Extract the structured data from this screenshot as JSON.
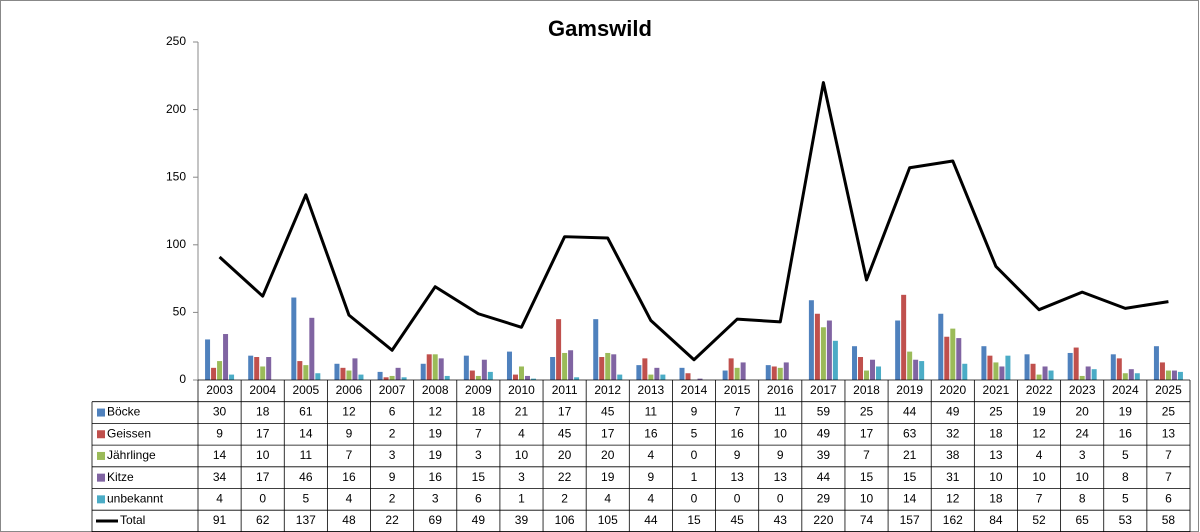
{
  "chart_data": {
    "type": "bar",
    "title": "Gamswild",
    "categories": [
      "2003",
      "2004",
      "2005",
      "2006",
      "2007",
      "2008",
      "2009",
      "2010",
      "2011",
      "2012",
      "2013",
      "2014",
      "2015",
      "2016",
      "2017",
      "2018",
      "2019",
      "2020",
      "2021",
      "2022",
      "2023",
      "2024",
      "2025"
    ],
    "series": [
      {
        "name": "Böcke",
        "color": "#4f81bd",
        "values": [
          30,
          18,
          61,
          12,
          6,
          12,
          18,
          21,
          17,
          45,
          11,
          9,
          7,
          11,
          59,
          25,
          44,
          49,
          25,
          19,
          20,
          19,
          25
        ]
      },
      {
        "name": "Geissen",
        "color": "#c0504d",
        "values": [
          9,
          17,
          14,
          9,
          2,
          19,
          7,
          4,
          45,
          17,
          16,
          5,
          16,
          10,
          49,
          17,
          63,
          32,
          18,
          12,
          24,
          16,
          13
        ]
      },
      {
        "name": "Jährlinge",
        "color": "#9bbb59",
        "values": [
          14,
          10,
          11,
          7,
          3,
          19,
          3,
          10,
          20,
          20,
          4,
          0,
          9,
          9,
          39,
          7,
          21,
          38,
          13,
          4,
          3,
          5,
          7
        ]
      },
      {
        "name": "Kitze",
        "color": "#8064a2",
        "values": [
          34,
          17,
          46,
          16,
          9,
          16,
          15,
          3,
          22,
          19,
          9,
          1,
          13,
          13,
          44,
          15,
          15,
          31,
          10,
          10,
          10,
          8,
          7
        ]
      },
      {
        "name": "unbekannt",
        "color": "#4bacc6",
        "values": [
          4,
          0,
          5,
          4,
          2,
          3,
          6,
          1,
          2,
          4,
          4,
          0,
          0,
          0,
          29,
          10,
          14,
          12,
          18,
          7,
          8,
          5,
          6
        ]
      },
      {
        "name": "Total",
        "color": "#000000",
        "type": "line",
        "values": [
          91,
          62,
          137,
          48,
          22,
          69,
          49,
          39,
          106,
          105,
          44,
          15,
          45,
          43,
          220,
          74,
          157,
          162,
          84,
          52,
          65,
          53,
          58
        ]
      }
    ],
    "ylim": [
      0,
      250
    ],
    "yticks": [
      0,
      50,
      100,
      150,
      200,
      250
    ],
    "grid": false,
    "data_table": true
  }
}
